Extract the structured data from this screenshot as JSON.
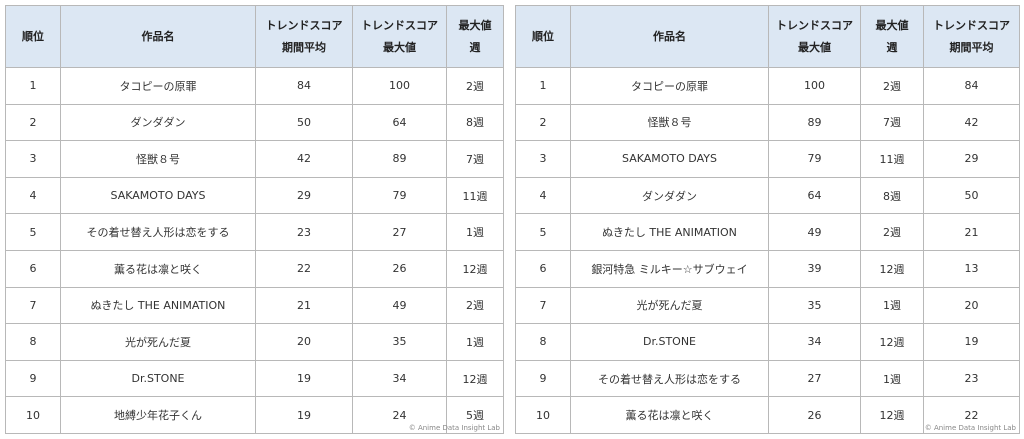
{
  "tables": [
    {
      "header": [
        [
          "順位"
        ],
        [
          "作品名"
        ],
        [
          "トレンドスコア",
          "期間平均"
        ],
        [
          "トレンドスコア",
          "最大値"
        ],
        [
          "最大値",
          "週"
        ]
      ],
      "rows": [
        [
          1,
          "タコピーの原罪",
          84,
          100,
          "2週"
        ],
        [
          2,
          "ダンダダン",
          50,
          64,
          "8週"
        ],
        [
          3,
          "怪獣８号",
          42,
          89,
          "7週"
        ],
        [
          4,
          "SAKAMOTO DAYS",
          29,
          79,
          "11週"
        ],
        [
          5,
          "その着せ替え人形は恋をする",
          23,
          27,
          "1週"
        ],
        [
          6,
          "薫る花は凛と咲く",
          22,
          26,
          "12週"
        ],
        [
          7,
          "ぬきたし THE ANIMATION",
          21,
          49,
          "2週"
        ],
        [
          8,
          "光が死んだ夏",
          20,
          35,
          "1週"
        ],
        [
          9,
          "Dr.STONE",
          19,
          34,
          "12週"
        ],
        [
          10,
          "地縛少年花子くん",
          19,
          24,
          "5週"
        ]
      ],
      "watermark": "© Anime Data Insight Lab"
    },
    {
      "header": [
        [
          "順位"
        ],
        [
          "作品名"
        ],
        [
          "トレンドスコア",
          "最大値"
        ],
        [
          "最大値",
          "週"
        ],
        [
          "トレンドスコア",
          "期間平均"
        ]
      ],
      "rows": [
        [
          1,
          "タコピーの原罪",
          100,
          "2週",
          84
        ],
        [
          2,
          "怪獣８号",
          89,
          "7週",
          42
        ],
        [
          3,
          "SAKAMOTO DAYS",
          79,
          "11週",
          29
        ],
        [
          4,
          "ダンダダン",
          64,
          "8週",
          50
        ],
        [
          5,
          "ぬきたし THE ANIMATION",
          49,
          "2週",
          21
        ],
        [
          6,
          "銀河特急 ミルキー☆サブウェイ",
          39,
          "12週",
          13
        ],
        [
          7,
          "光が死んだ夏",
          35,
          "1週",
          20
        ],
        [
          8,
          "Dr.STONE",
          34,
          "12週",
          19
        ],
        [
          9,
          "その着せ替え人形は恋をする",
          27,
          "1週",
          23
        ],
        [
          10,
          "薫る花は凛と咲く",
          26,
          "12週",
          22
        ]
      ],
      "watermark": "© Anime Data Insight Lab"
    }
  ]
}
